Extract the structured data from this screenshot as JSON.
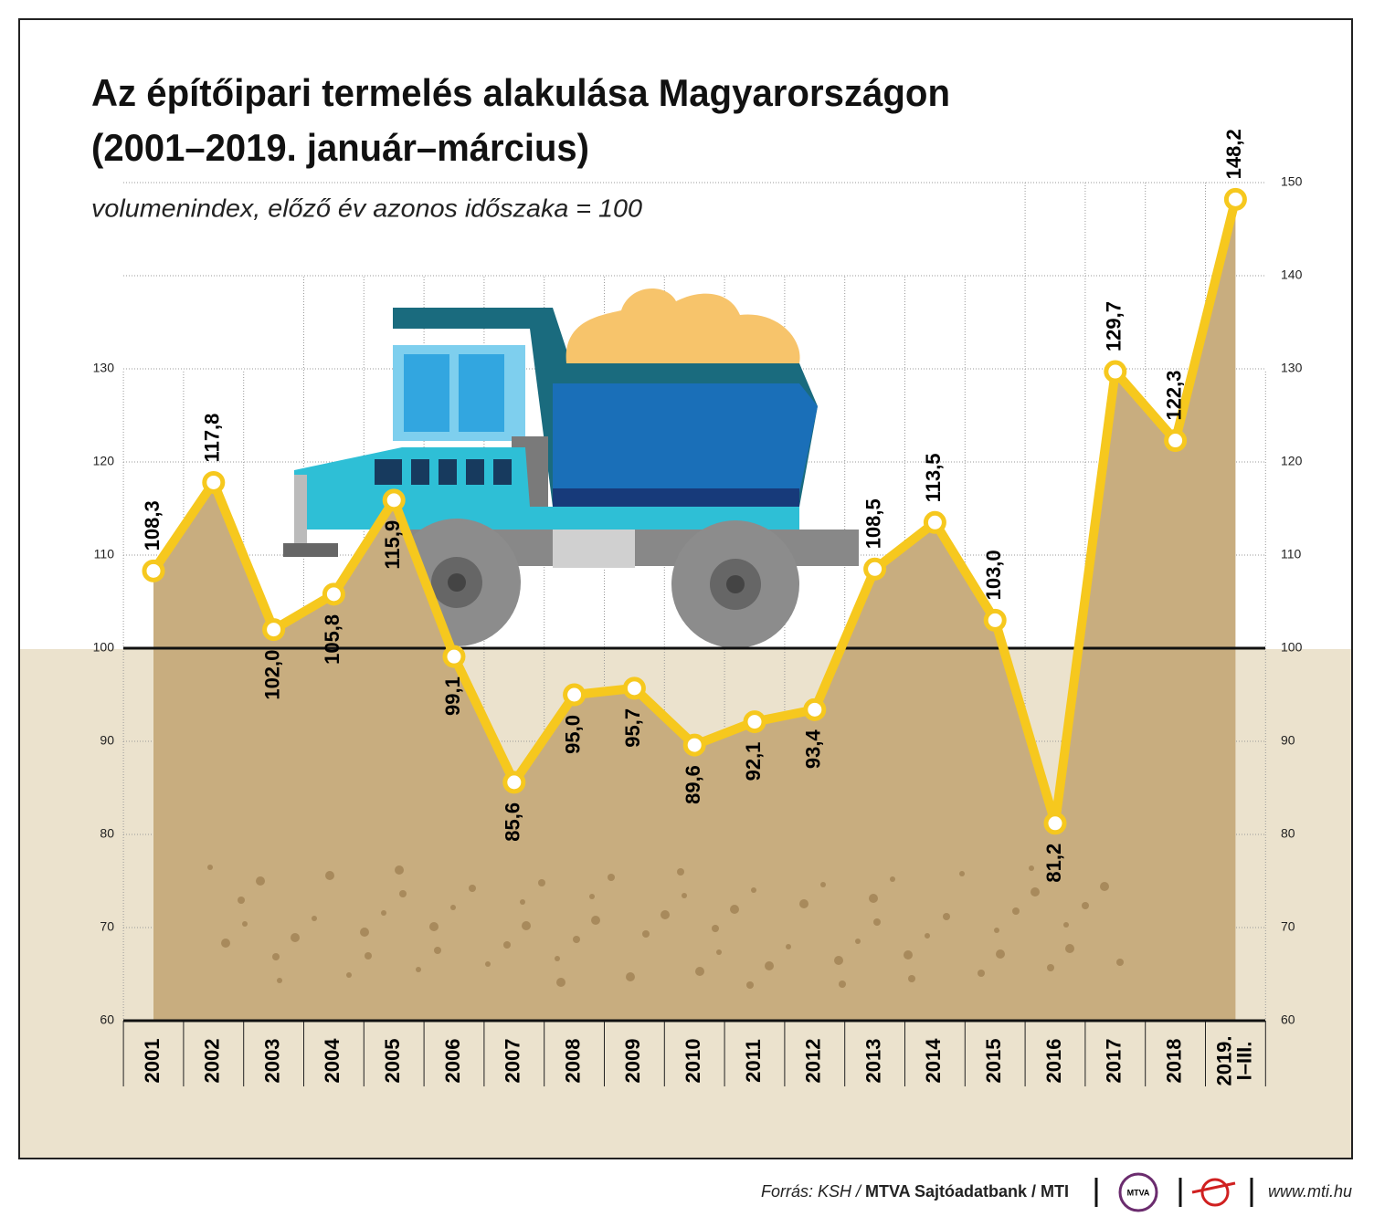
{
  "chart_data": {
    "type": "area-line",
    "title": "Az építőipari termelés alakulása Magyarországon",
    "title_line2": "(2001–2019. január–március)",
    "subtitle": "volumenindex, előző év azonos időszaka = 100",
    "categories": [
      "2001",
      "2002",
      "2003",
      "2004",
      "2005",
      "2006",
      "2007",
      "2008",
      "2009",
      "2010",
      "2011",
      "2012",
      "2013",
      "2014",
      "2015",
      "2016",
      "2017",
      "2018",
      "2019. I–III."
    ],
    "values": [
      108.3,
      117.8,
      102.0,
      105.8,
      115.9,
      99.1,
      85.6,
      95.0,
      95.7,
      89.6,
      92.1,
      93.4,
      108.5,
      113.5,
      103.0,
      81.2,
      129.7,
      122.3,
      148.2
    ],
    "value_labels": [
      "108,3",
      "117,8",
      "102,0",
      "105,8",
      "115,9",
      "99,1",
      "85,6",
      "95,0",
      "95,7",
      "89,6",
      "92,1",
      "93,4",
      "108,5",
      "113,5",
      "103,0",
      "81,2",
      "129,7",
      "122,3",
      "148,2"
    ],
    "line_color": "#f6c81e",
    "area_color": "#c8ad7f",
    "ylim": [
      60,
      150
    ],
    "yticks": [
      60,
      70,
      80,
      90,
      100,
      110,
      120,
      130
    ],
    "y2lim": [
      60,
      150
    ],
    "y2ticks": [
      60,
      70,
      80,
      90,
      100,
      110,
      120,
      130,
      140,
      150
    ],
    "reference": 100,
    "source": "Forrás: KSH / ",
    "source_bold": "MTVA Sajtóadatbank / MTI",
    "website": "www.mti.hu",
    "logo_text": "MTVA"
  }
}
